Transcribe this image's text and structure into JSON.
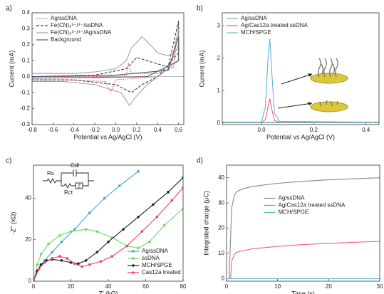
{
  "chart_data": [
    {
      "type": "line",
      "panel": "a)",
      "xlabel": "Potential vs Ag/AgCl (V)",
      "ylabel": "Current (mA)",
      "xlim": [
        -0.8,
        0.65
      ],
      "ylim": [
        -0.3,
        0.4
      ],
      "xticks": [
        -0.8,
        -0.6,
        -0.4,
        -0.2,
        {
          "value": 0,
          "label": "0.0"
        },
        0.2,
        0.4,
        0.6
      ],
      "yticks": [
        -0.3,
        -0.2,
        -0.1,
        {
          "value": 0,
          "label": "0.0"
        },
        0.1,
        0.2,
        0.3,
        0.4
      ],
      "legend": "upper left",
      "series": [
        {
          "name": "Ag/ssDNA",
          "color": "#e8506e",
          "dash": "dotted",
          "x": [
            -0.8,
            -0.2,
            0.1,
            0.12,
            0.15,
            0.4,
            0.55,
            0.6,
            0.6,
            0.4,
            0.0,
            -0.05,
            -0.1,
            -0.5,
            -0.8
          ],
          "values": [
            0.0,
            0.0,
            0.01,
            0.08,
            0.02,
            0.02,
            0.06,
            0.33,
            0.1,
            0.0,
            -0.02,
            -0.1,
            -0.03,
            -0.02,
            -0.02
          ]
        },
        {
          "name": "Fe(CN)₆³⁻/⁴⁻/ssDNA",
          "color": "#3a3a5a",
          "dash": "dashed",
          "x": [
            -0.8,
            -0.2,
            0.1,
            0.2,
            0.3,
            0.5,
            0.6,
            0.6,
            0.4,
            0.25,
            0.15,
            0.0,
            -0.4,
            -0.8
          ],
          "values": [
            0.0,
            0.01,
            0.05,
            0.12,
            0.1,
            0.06,
            0.35,
            0.15,
            0.0,
            -0.05,
            -0.1,
            -0.05,
            -0.02,
            -0.02
          ]
        },
        {
          "name": "Fe(CN)₆³⁻/⁴⁻/Ag/ssDNA",
          "color": "#a0a0a0",
          "dash": "solid",
          "x": [
            -0.8,
            -0.4,
            -0.2,
            0.0,
            0.1,
            0.15,
            0.25,
            0.3,
            0.4,
            0.5,
            0.55,
            0.6,
            0.6,
            0.5,
            0.3,
            0.2,
            0.13,
            0.05,
            -0.2,
            -0.5,
            -0.8
          ],
          "values": [
            0.02,
            0.02,
            0.03,
            0.05,
            0.1,
            0.18,
            0.25,
            0.22,
            0.15,
            0.13,
            0.15,
            0.3,
            0.2,
            0.05,
            -0.05,
            -0.12,
            -0.18,
            -0.1,
            -0.05,
            -0.03,
            -0.03
          ]
        },
        {
          "name": "Background",
          "color": "#555566",
          "dash": "solid",
          "x": [
            -0.8,
            0.0,
            0.5,
            0.6,
            0.6,
            0.3,
            -0.8
          ],
          "values": [
            0.0,
            0.01,
            0.04,
            0.25,
            0.1,
            0.0,
            -0.01
          ]
        }
      ]
    },
    {
      "type": "line",
      "panel": "b)",
      "xlabel": "Potential vs Ag/AgCl (V)",
      "ylabel": "Current (mA)",
      "xlim": [
        -0.15,
        0.45
      ],
      "ylim": [
        -0.05,
        3.4
      ],
      "xticks": [
        {
          "value": 0,
          "label": "0.0"
        },
        0.2,
        0.4
      ],
      "yticks": [
        0,
        1,
        2,
        3
      ],
      "legend": "upper left",
      "series": [
        {
          "name": "Ag/ssDNA",
          "color": "#6ab0de",
          "dash": "solid",
          "x": [
            -0.15,
            0.0,
            0.015,
            0.025,
            0.032,
            0.04,
            0.05,
            0.07,
            0.45
          ],
          "values": [
            0.02,
            0.03,
            0.5,
            2.0,
            2.6,
            1.5,
            0.3,
            0.05,
            0.02
          ]
        },
        {
          "name": "Ag/Cas12a treated ssDNA",
          "color": "#f0588a",
          "dash": "solid",
          "x": [
            -0.15,
            0.0,
            0.015,
            0.025,
            0.032,
            0.04,
            0.05,
            0.07,
            0.45
          ],
          "values": [
            0.02,
            0.02,
            0.1,
            0.5,
            0.75,
            0.4,
            0.08,
            0.02,
            0.02
          ]
        },
        {
          "name": "MCH/SPGE",
          "color": "#5bc0c0",
          "dash": "solid",
          "x": [
            -0.15,
            0.45
          ],
          "values": [
            0.02,
            0.02
          ]
        }
      ]
    },
    {
      "type": "line",
      "panel": "c)",
      "xlabel": "Z' (kΩ)",
      "ylabel": "-Z'' (kΩ)",
      "xlim": [
        0,
        80
      ],
      "ylim": [
        0,
        56
      ],
      "xticks": [
        0,
        20,
        40,
        60,
        80
      ],
      "yticks": [
        0,
        20,
        40
      ],
      "legend": "lower right",
      "annotations": [
        "Rs",
        "Cdl",
        "Rct",
        "Z"
      ],
      "series": [
        {
          "name": "Ag/ssDNA",
          "color": "#4aa3d8",
          "dash": "solid",
          "marker": "circle",
          "x": [
            0,
            2,
            4,
            6,
            10,
            15,
            22,
            30,
            38,
            46,
            56
          ],
          "values": [
            0,
            5,
            8,
            10,
            14,
            19,
            25,
            33,
            40,
            46,
            53
          ]
        },
        {
          "name": "ssDNA",
          "color": "#66dd66",
          "dash": "solid",
          "marker": "circle",
          "x": [
            0,
            2,
            4,
            8,
            14,
            20,
            28,
            34,
            42,
            50,
            56,
            62,
            70,
            80
          ],
          "values": [
            0,
            8,
            13,
            18,
            22,
            24,
            25,
            24,
            21,
            17,
            16,
            19,
            27,
            35
          ]
        },
        {
          "name": "MCH/SPGE",
          "color": "#222222",
          "dash": "solid",
          "marker": "circle",
          "x": [
            0,
            2,
            4,
            7,
            10,
            15,
            20,
            24,
            28,
            34,
            40,
            48,
            56,
            64,
            72,
            80
          ],
          "values": [
            0,
            5,
            8,
            10,
            10.5,
            10,
            9,
            8.5,
            10,
            14,
            19,
            25,
            31,
            37,
            43,
            50
          ]
        },
        {
          "name": "Cas12a treated",
          "color": "#ee4466",
          "dash": "solid",
          "marker": "circle",
          "x": [
            0,
            3,
            6,
            10,
            14,
            18,
            22,
            26,
            30,
            36,
            42,
            50,
            58,
            66,
            74,
            80
          ],
          "values": [
            0,
            6,
            9,
            11,
            12,
            11,
            8.5,
            7,
            8,
            9.5,
            12,
            17,
            24,
            31,
            39,
            45
          ]
        }
      ]
    },
    {
      "type": "line",
      "panel": "d)",
      "xlabel": "Time (s)",
      "ylabel": "Integrated charge (μC)",
      "xlim": [
        0,
        30
      ],
      "ylim": [
        -1,
        45
      ],
      "xticks": [
        0,
        10,
        20,
        30
      ],
      "yticks": [
        0,
        10,
        20,
        30,
        40
      ],
      "legend": "center",
      "series": [
        {
          "name": "Ag/ssDNA",
          "color": "#888888",
          "dash": "solid",
          "x": [
            0,
            0.5,
            1,
            1.5,
            2,
            3,
            5,
            10,
            15,
            20,
            25,
            30
          ],
          "values": [
            0,
            0,
            28,
            33,
            34.5,
            35.5,
            36.5,
            37.8,
            38.6,
            39.2,
            39.6,
            40
          ]
        },
        {
          "name": "Ag/Cas12a treated ssDNA",
          "color": "#f06080",
          "dash": "solid",
          "x": [
            0,
            0.8,
            1,
            1.5,
            2,
            3,
            5,
            10,
            15,
            20,
            25,
            30
          ],
          "values": [
            0,
            0,
            7,
            9.5,
            10.5,
            11,
            11.8,
            12.8,
            13.5,
            14,
            14.4,
            14.8
          ]
        },
        {
          "name": "MCH/SPGE",
          "color": "#5ab8d8",
          "dash": "solid",
          "x": [
            0,
            30
          ],
          "values": [
            0,
            0
          ]
        }
      ]
    }
  ]
}
